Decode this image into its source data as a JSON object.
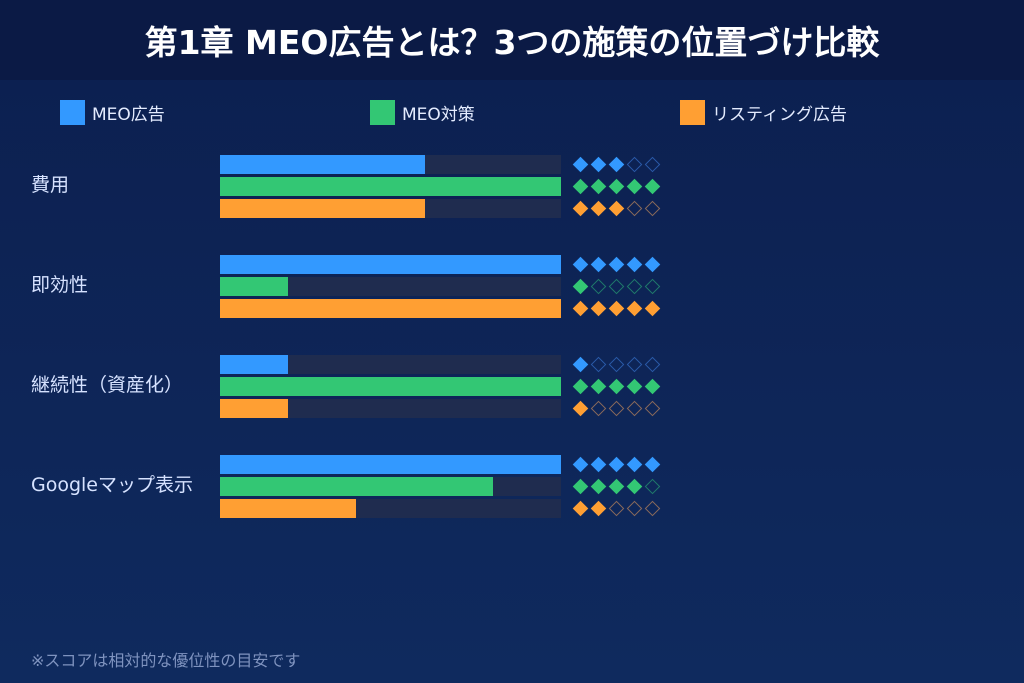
{
  "title": "第1章 MEO広告とは？3つの施策の位置づけ比較",
  "legend": [
    {
      "label": "MEO広告",
      "color": "#3399ff"
    },
    {
      "label": "MEO対策",
      "color": "#33c774"
    },
    {
      "label": "リスティング広告",
      "color": "#ff9f33"
    }
  ],
  "footnote": "※スコアは相対的な優位性の目安です",
  "chart_data": {
    "type": "bar",
    "orientation": "horizontal",
    "title": "第1章 MEO広告とは？3つの施策の位置づけ比較",
    "categories": [
      "費用",
      "即効性",
      "継続性（資産化）",
      "Googleマップ表示"
    ],
    "series": [
      {
        "name": "MEO広告",
        "color": "#3399ff",
        "values": [
          3,
          5,
          1,
          5
        ]
      },
      {
        "name": "MEO対策",
        "color": "#33c774",
        "values": [
          5,
          1,
          5,
          4
        ]
      },
      {
        "name": "リスティング広告",
        "color": "#ff9f33",
        "values": [
          3,
          5,
          1,
          2
        ]
      }
    ],
    "xlim": [
      0,
      5
    ],
    "max_score": 5,
    "score_display": "diamonds (filled = score, outlined = remainder)",
    "legend_position": "top",
    "grid": false,
    "xlabel": "",
    "ylabel": "",
    "annotation": "※スコアは相対的な優位性の目安です"
  },
  "colors": {
    "background": "#0f2a5e",
    "header": "#0b1a45",
    "track": "#1f2c4f",
    "outline_blue": "#2a5aa8",
    "outline_green": "#1f7a6a",
    "outline_orange": "#8a6a5a"
  }
}
